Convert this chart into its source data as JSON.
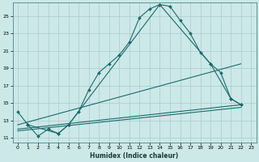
{
  "xlabel": "Humidex (Indice chaleur)",
  "background_color": "#cce8e8",
  "line_color": "#1a6b6b",
  "grid_color": "#aacccc",
  "xlim": [
    -0.5,
    23.5
  ],
  "ylim": [
    10.5,
    26.5
  ],
  "yticks": [
    11,
    13,
    15,
    17,
    19,
    21,
    23,
    25
  ],
  "xticks": [
    0,
    1,
    2,
    3,
    4,
    5,
    6,
    7,
    8,
    9,
    10,
    11,
    12,
    13,
    14,
    15,
    16,
    17,
    18,
    19,
    20,
    21,
    22,
    23
  ],
  "series": [
    {
      "x": [
        0,
        1,
        2,
        3,
        4,
        5,
        6,
        7,
        8,
        9,
        10,
        11,
        12,
        13,
        14,
        15,
        16,
        17,
        18,
        19,
        20,
        21,
        22
      ],
      "y": [
        14.0,
        12.5,
        11.2,
        12.0,
        11.5,
        12.5,
        14.0,
        16.5,
        18.5,
        19.5,
        20.5,
        22.0,
        24.8,
        25.8,
        26.3,
        26.1,
        24.5,
        23.0,
        20.8,
        19.5,
        18.5,
        15.5,
        14.8
      ],
      "marker": true
    },
    {
      "x": [
        1,
        4,
        5,
        14,
        19,
        21,
        22
      ],
      "y": [
        12.5,
        11.5,
        12.5,
        26.3,
        19.5,
        15.5,
        14.8
      ],
      "marker": true
    },
    {
      "x": [
        0,
        22
      ],
      "y": [
        12.5,
        19.5
      ],
      "marker": false
    },
    {
      "x": [
        0,
        22
      ],
      "y": [
        12.0,
        14.8
      ],
      "marker": false
    },
    {
      "x": [
        0,
        22
      ],
      "y": [
        11.8,
        14.5
      ],
      "marker": false
    }
  ]
}
